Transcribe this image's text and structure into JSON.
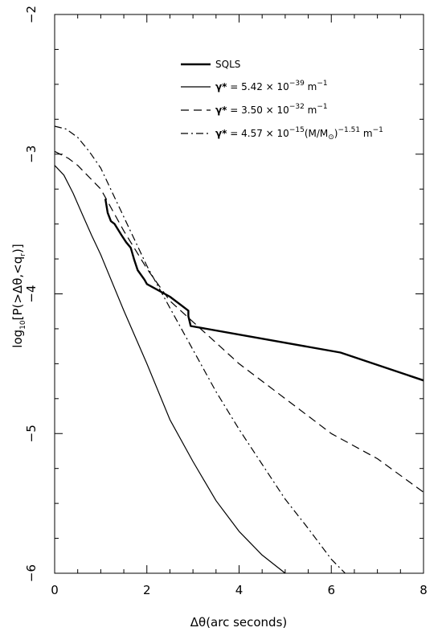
{
  "chart_data": {
    "type": "line",
    "xlabel_prefix": "Δθ",
    "xlabel_rest": "(arc seconds)",
    "ylabel": {
      "a": "log",
      "a_sub": "10",
      "b": "[P(>Δθ,<q",
      "b_sub": "r",
      "c": ")]"
    },
    "xlim": [
      0,
      8
    ],
    "ylim": [
      -6,
      -2
    ],
    "x_ticks": [
      0,
      2,
      4,
      6,
      8
    ],
    "x_tick_labels": [
      "0",
      "2",
      "4",
      "6",
      "8"
    ],
    "y_ticks": [
      -6,
      -5,
      -4,
      -3,
      -2
    ],
    "y_tick_labels": [
      "−6",
      "−5",
      "−4",
      "−3",
      "−2"
    ],
    "legend": {
      "position": "top-right",
      "entries": [
        {
          "style": "solid-thick",
          "text": "SQLS"
        },
        {
          "style": "solid",
          "gamma": "γ*",
          "eq": " = 5.42 × 10",
          "exp": "−39",
          "unit": " m",
          "unit_exp": "−1"
        },
        {
          "style": "dashed",
          "gamma": "γ*",
          "eq": " = 3.50 × 10",
          "exp": "−32",
          "unit": " m",
          "unit_exp": "−1"
        },
        {
          "style": "dashdot",
          "gamma": "γ*",
          "eq": " = 4.57 × 10",
          "exp": "−15",
          "mid": "(M/M",
          "mid_sub": "⊙",
          "mid_close": ")",
          "mid_exp": "−1.51",
          "unit": " m",
          "unit_exp": "−1"
        }
      ]
    },
    "series": [
      {
        "style": "solid-thick",
        "x": [
          1.1,
          1.15,
          1.22,
          1.3,
          1.45,
          1.55,
          1.65,
          1.72,
          1.8,
          1.95,
          2.0,
          2.5,
          2.9,
          2.9,
          2.95,
          6.2,
          8.0
        ],
        "y": [
          -3.32,
          -3.42,
          -3.48,
          -3.5,
          -3.58,
          -3.63,
          -3.67,
          -3.75,
          -3.83,
          -3.9,
          -3.93,
          -4.02,
          -4.12,
          -4.16,
          -4.23,
          -4.42,
          -4.62
        ]
      },
      {
        "style": "solid",
        "x": [
          0.0,
          0.2,
          0.4,
          0.6,
          0.8,
          1.0,
          1.5,
          2.0,
          2.5,
          3.0,
          3.5,
          4.0,
          4.5,
          5.0
        ],
        "y": [
          -3.08,
          -3.15,
          -3.28,
          -3.43,
          -3.58,
          -3.72,
          -4.12,
          -4.5,
          -4.9,
          -5.2,
          -5.48,
          -5.7,
          -5.87,
          -6.0
        ]
      },
      {
        "style": "dashed",
        "x": [
          0.0,
          0.3,
          0.5,
          1.0,
          1.5,
          2.0,
          2.5,
          3.0,
          3.5,
          4.0,
          5.0,
          6.0,
          7.0,
          8.0
        ],
        "y": [
          -2.98,
          -3.03,
          -3.08,
          -3.25,
          -3.55,
          -3.82,
          -4.05,
          -4.2,
          -4.35,
          -4.5,
          -4.75,
          -5.0,
          -5.18,
          -5.42
        ]
      },
      {
        "style": "dashdot",
        "x": [
          0.0,
          0.25,
          0.5,
          0.75,
          1.0,
          1.5,
          2.0,
          2.5,
          3.0,
          3.5,
          4.0,
          4.5,
          5.0,
          5.5,
          6.0,
          6.3
        ],
        "y": [
          -2.8,
          -2.82,
          -2.88,
          -2.98,
          -3.1,
          -3.45,
          -3.8,
          -4.1,
          -4.4,
          -4.7,
          -4.97,
          -5.22,
          -5.47,
          -5.68,
          -5.9,
          -6.0
        ]
      }
    ]
  }
}
